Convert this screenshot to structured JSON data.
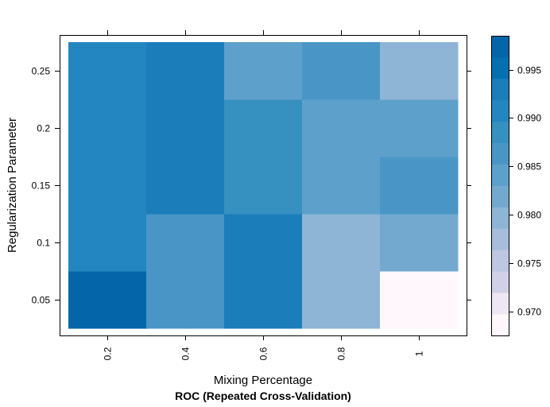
{
  "chart_data": {
    "type": "heatmap",
    "title": "ROC (Repeated Cross-Validation)",
    "xlabel": "Mixing Percentage",
    "ylabel": "Regularization Parameter",
    "x": [
      0.2,
      0.4,
      0.6,
      0.8,
      1
    ],
    "x_tick_labels": [
      "0.2",
      "0.4",
      "0.6",
      "0.8",
      "1"
    ],
    "y": [
      0.05,
      0.1,
      0.15,
      0.2,
      0.25
    ],
    "y_tick_labels": [
      "0.05",
      "0.1",
      "0.15",
      "0.2",
      "0.25"
    ],
    "values": [
      [
        0.9985,
        0.9865,
        0.9935,
        0.9795,
        0.9685
      ],
      [
        0.9915,
        0.9865,
        0.9935,
        0.9795,
        0.9825
      ],
      [
        0.9915,
        0.9935,
        0.9895,
        0.9845,
        0.9865
      ],
      [
        0.9915,
        0.9935,
        0.9895,
        0.9845,
        0.9845
      ],
      [
        0.9915,
        0.9935,
        0.9845,
        0.9865,
        0.9795
      ]
    ],
    "colorbar": {
      "range": [
        0.9675,
        0.9985
      ],
      "ticks": [
        0.97,
        0.975,
        0.98,
        0.985,
        0.99,
        0.995
      ],
      "tick_labels": [
        "0.970",
        "0.975",
        "0.980",
        "0.985",
        "0.990",
        "0.995"
      ],
      "colors": [
        "#FFF7FB",
        "#ECE7F2",
        "#D0D1E6",
        "#BDC7E1",
        "#A6BDDB",
        "#8EB4D6",
        "#74A9CF",
        "#5EA0CC",
        "#4996C6",
        "#3690C0",
        "#2486C0",
        "#1C7DBB",
        "#0570B0",
        "#0466A8"
      ]
    }
  }
}
